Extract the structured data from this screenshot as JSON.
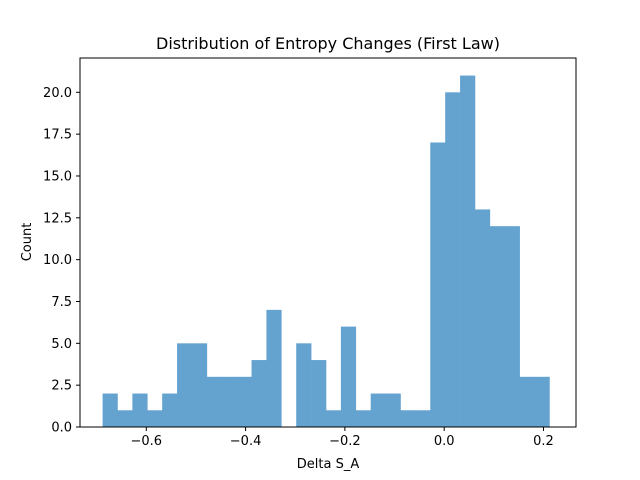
{
  "chart_data": {
    "type": "bar",
    "title": "Distribution of Entropy Changes (First Law)",
    "xlabel": "Delta S_A",
    "ylabel": "Count",
    "xlim": [
      -0.7335,
      0.2655
    ],
    "ylim": [
      0,
      22.05
    ],
    "grid": false,
    "legend": "none",
    "bar_color": "#64a2cf",
    "bins": {
      "start": -0.688,
      "width": 0.03,
      "counts": [
        2,
        1,
        2,
        1,
        2,
        5,
        5,
        3,
        3,
        3,
        4,
        7,
        0,
        5,
        4,
        1,
        6,
        1,
        2,
        2,
        1,
        1,
        17,
        20,
        21,
        13,
        12,
        12,
        3,
        3
      ]
    },
    "x_ticks": [
      {
        "value": -0.6,
        "label": "−0.6"
      },
      {
        "value": -0.4,
        "label": "−0.4"
      },
      {
        "value": -0.2,
        "label": "−0.2"
      },
      {
        "value": 0.0,
        "label": "0.0"
      },
      {
        "value": 0.2,
        "label": "0.2"
      }
    ],
    "y_ticks": [
      {
        "value": 0.0,
        "label": "0.0"
      },
      {
        "value": 2.5,
        "label": "2.5"
      },
      {
        "value": 5.0,
        "label": "5.0"
      },
      {
        "value": 7.5,
        "label": "7.5"
      },
      {
        "value": 10.0,
        "label": "10.0"
      },
      {
        "value": 12.5,
        "label": "12.5"
      },
      {
        "value": 15.0,
        "label": "15.0"
      },
      {
        "value": 17.5,
        "label": "17.5"
      },
      {
        "value": 20.0,
        "label": "20.0"
      }
    ]
  }
}
